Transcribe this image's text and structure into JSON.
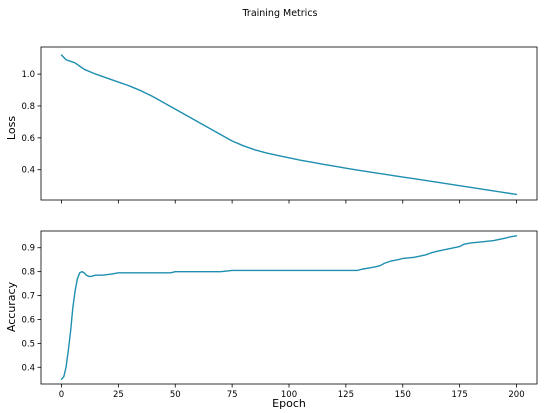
{
  "chart_data": {
    "type": "line",
    "title": "Training Metrics",
    "line_color": "#1f8fb0",
    "xlabel": "Epoch",
    "xlim": [
      -9,
      209
    ],
    "xticks": [
      0,
      25,
      50,
      75,
      100,
      125,
      150,
      175,
      200
    ],
    "panels": [
      {
        "id": "loss",
        "ylabel": "Loss",
        "ylim": [
          0.21,
          1.17
        ],
        "yticks": [
          0.4,
          0.6,
          0.8,
          1.0
        ],
        "ytick_labels": [
          "0.4",
          "0.6",
          "0.8",
          "1.0"
        ],
        "show_xtick_labels": false,
        "x": [
          0,
          2,
          4,
          6,
          8,
          10,
          15,
          20,
          25,
          30,
          35,
          40,
          45,
          50,
          55,
          60,
          65,
          70,
          75,
          80,
          85,
          90,
          95,
          100,
          105,
          110,
          115,
          120,
          125,
          130,
          135,
          140,
          145,
          150,
          155,
          160,
          165,
          170,
          175,
          180,
          185,
          190,
          195,
          200
        ],
        "y": [
          1.12,
          1.09,
          1.08,
          1.07,
          1.05,
          1.03,
          1.0,
          0.975,
          0.95,
          0.925,
          0.895,
          0.86,
          0.82,
          0.78,
          0.74,
          0.7,
          0.66,
          0.62,
          0.58,
          0.55,
          0.525,
          0.505,
          0.49,
          0.475,
          0.46,
          0.447,
          0.434,
          0.422,
          0.41,
          0.398,
          0.387,
          0.376,
          0.365,
          0.354,
          0.344,
          0.333,
          0.322,
          0.311,
          0.3,
          0.289,
          0.278,
          0.267,
          0.256,
          0.245
        ]
      },
      {
        "id": "accuracy",
        "ylabel": "Accuracy",
        "ylim": [
          0.33,
          0.97
        ],
        "yticks": [
          0.4,
          0.5,
          0.6,
          0.7,
          0.8,
          0.9
        ],
        "ytick_labels": [
          "0.4",
          "0.5",
          "0.6",
          "0.7",
          "0.8",
          "0.9"
        ],
        "show_xtick_labels": true,
        "x": [
          0,
          1,
          2,
          3,
          4,
          5,
          6,
          7,
          8,
          9,
          10,
          11,
          12,
          13,
          15,
          18,
          22,
          25,
          30,
          40,
          48,
          50,
          60,
          70,
          75,
          80,
          90,
          100,
          110,
          120,
          130,
          132,
          135,
          138,
          140,
          142,
          145,
          148,
          150,
          155,
          160,
          163,
          165,
          170,
          175,
          177,
          180,
          185,
          190,
          195,
          197,
          200
        ],
        "y": [
          0.35,
          0.36,
          0.4,
          0.47,
          0.55,
          0.65,
          0.72,
          0.77,
          0.795,
          0.8,
          0.795,
          0.785,
          0.78,
          0.78,
          0.785,
          0.785,
          0.79,
          0.795,
          0.795,
          0.795,
          0.795,
          0.8,
          0.8,
          0.8,
          0.805,
          0.805,
          0.805,
          0.805,
          0.805,
          0.805,
          0.805,
          0.81,
          0.815,
          0.82,
          0.825,
          0.835,
          0.845,
          0.85,
          0.855,
          0.86,
          0.87,
          0.88,
          0.885,
          0.895,
          0.905,
          0.915,
          0.92,
          0.925,
          0.93,
          0.94,
          0.945,
          0.95
        ]
      }
    ]
  }
}
